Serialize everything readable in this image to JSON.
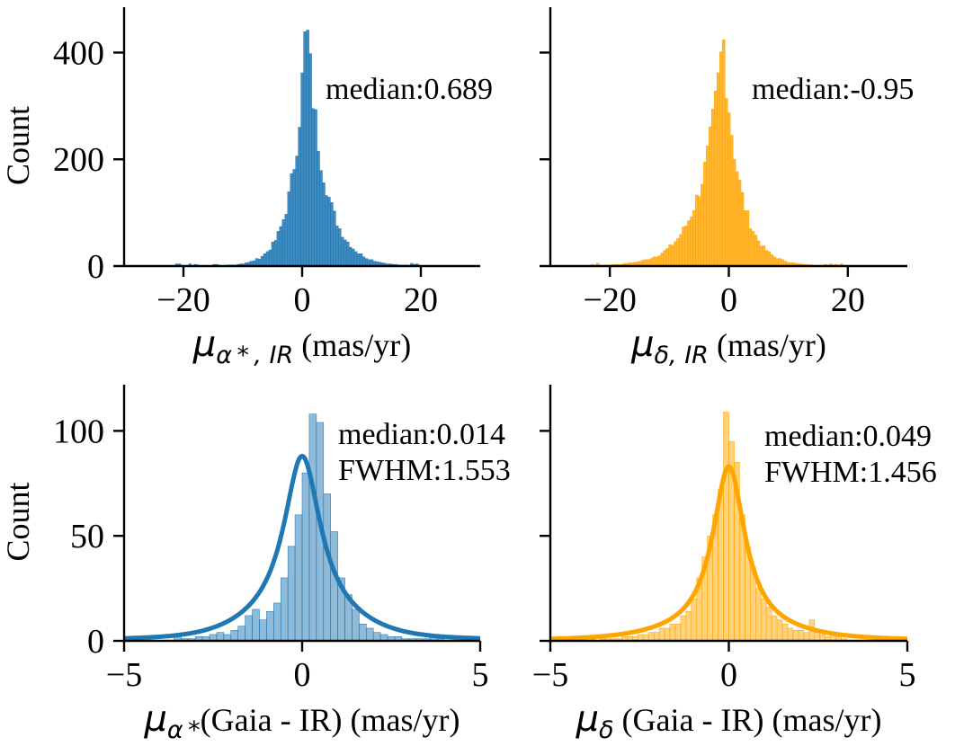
{
  "colors": {
    "blue": "#1f77b4",
    "orange": "#ffa500",
    "axis": "#000000"
  },
  "chart_data": [
    {
      "type": "histogram",
      "color": "blue",
      "bar_alpha": 0.85,
      "xlim": [
        -30,
        30
      ],
      "ylim": [
        0,
        485
      ],
      "xticks": [
        -20,
        0,
        20
      ],
      "xtick_labels": [
        "−20",
        "0",
        "20"
      ],
      "yticks": [
        0,
        200,
        400
      ],
      "ytick_labels": [
        "0",
        "200",
        "400"
      ],
      "ylabel": "Count",
      "xlabel_sym": "μ",
      "xlabel_sub": "α * , IR",
      "xlabel_rest": " (mas/yr)",
      "annotation": [
        "median:0.689"
      ],
      "hist": {
        "start": -29.0,
        "width": 0.45,
        "median": 0.689,
        "peak": 460,
        "left_scale": 2.3,
        "right_scale": 3.0
      },
      "kde": null
    },
    {
      "type": "histogram",
      "color": "orange",
      "bar_alpha": 0.8,
      "xlim": [
        -30,
        30
      ],
      "ylim": [
        0,
        485
      ],
      "xticks": [
        -20,
        0,
        20
      ],
      "xtick_labels": [
        "−20",
        "0",
        "20"
      ],
      "yticks": [
        0,
        200,
        400
      ],
      "ytick_labels": [
        "",
        "",
        ""
      ],
      "ylabel": "",
      "xlabel_sym": "μ",
      "xlabel_sub": "δ, IR",
      "xlabel_rest": " (mas/yr)",
      "annotation": [
        "median:-0.95"
      ],
      "hist": {
        "start": -29.0,
        "width": 0.45,
        "median": -0.95,
        "peak": 430,
        "left_scale": 3.6,
        "right_scale": 2.7
      },
      "kde": null
    },
    {
      "type": "histogram",
      "color": "blue",
      "bar_alpha": 0.5,
      "xlim": [
        -5,
        5
      ],
      "ylim": [
        0,
        122
      ],
      "xticks": [
        -5,
        0,
        5
      ],
      "xtick_labels": [
        "−5",
        "0",
        "5"
      ],
      "yticks": [
        0,
        50,
        100
      ],
      "ytick_labels": [
        "0",
        "50",
        "100"
      ],
      "ylabel": "Count",
      "xlabel_sym": "μ",
      "xlabel_sub": "α *",
      "xlabel_rest": "(Gaia - IR) (mas/yr)",
      "annotation": [
        "median:0.014",
        "FWHM:1.553"
      ],
      "hist": {
        "edges_start": -3.6,
        "width": 0.2,
        "counts": [
          2,
          1,
          1,
          2,
          2,
          3,
          4,
          3,
          5,
          7,
          12,
          15,
          10,
          14,
          18,
          30,
          45,
          60,
          80,
          108,
          104,
          70,
          52,
          30,
          22,
          15,
          8,
          6,
          4,
          3,
          2,
          2,
          1,
          1,
          1,
          1,
          2,
          1,
          0,
          0
        ]
      },
      "kde": {
        "peak": 88,
        "center": 0.0,
        "gamma": 0.62,
        "wing_amp": 10,
        "wing_sigma": 1.35
      }
    },
    {
      "type": "histogram",
      "color": "orange",
      "bar_alpha": 0.5,
      "xlim": [
        -5,
        5
      ],
      "ylim": [
        0,
        122
      ],
      "xticks": [
        -5,
        0,
        5
      ],
      "xtick_labels": [
        "−5",
        "0",
        "5"
      ],
      "yticks": [
        0,
        50,
        100
      ],
      "ytick_labels": [
        "",
        "",
        ""
      ],
      "ylabel": "",
      "xlabel_sym": "μ",
      "xlabel_sub": "δ",
      "xlabel_rest": " (Gaia - IR) (mas/yr)",
      "annotation": [
        "median:0.049",
        "FWHM:1.456"
      ],
      "hist": {
        "edges_start": -4.2,
        "width": 0.15,
        "counts": [
          1,
          0,
          1,
          0,
          1,
          1,
          1,
          1,
          2,
          2,
          2,
          3,
          3,
          4,
          4,
          6,
          6,
          8,
          8,
          12,
          14,
          20,
          30,
          40,
          50,
          60,
          72,
          109,
          95,
          85,
          60,
          45,
          35,
          25,
          20,
          16,
          12,
          10,
          8,
          6,
          5,
          5,
          4,
          10,
          4,
          3,
          2,
          3,
          2,
          1,
          0,
          0
        ]
      },
      "kde": {
        "peak": 83,
        "center": 0.0,
        "gamma": 0.55,
        "wing_amp": 4,
        "wing_sigma": 1.6
      }
    }
  ]
}
